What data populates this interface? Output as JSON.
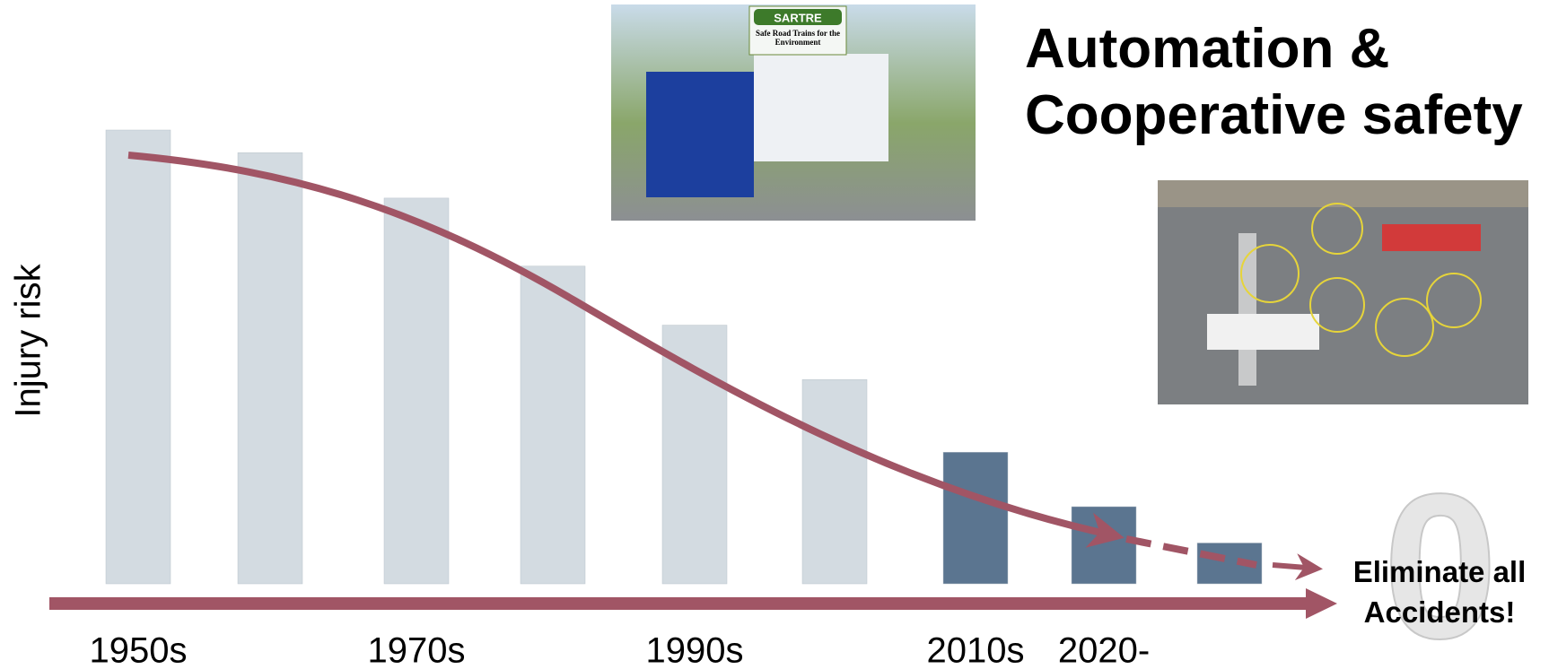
{
  "chart_data": {
    "type": "bar",
    "title": "Automation & Cooperative safety",
    "y_label": "Injury risk",
    "annotation": "Eliminate all Accidents!",
    "zero_graphic": "0",
    "image_captions": [
      "SARTRE",
      "Safe Road Trains for the Environment"
    ],
    "categories": [
      "1950s",
      null,
      "1970s",
      null,
      "1990s",
      null,
      "2010s",
      "2020-",
      null
    ],
    "values": [
      100,
      95,
      85,
      70,
      57,
      45,
      29,
      17,
      9
    ],
    "colors": [
      "#d3dbe1",
      "#d3dbe1",
      "#d3dbe1",
      "#d3dbe1",
      "#d3dbe1",
      "#d3dbe1",
      "#5b7590",
      "#5b7590",
      "#5b7590"
    ],
    "ylim": [
      0,
      100
    ]
  }
}
